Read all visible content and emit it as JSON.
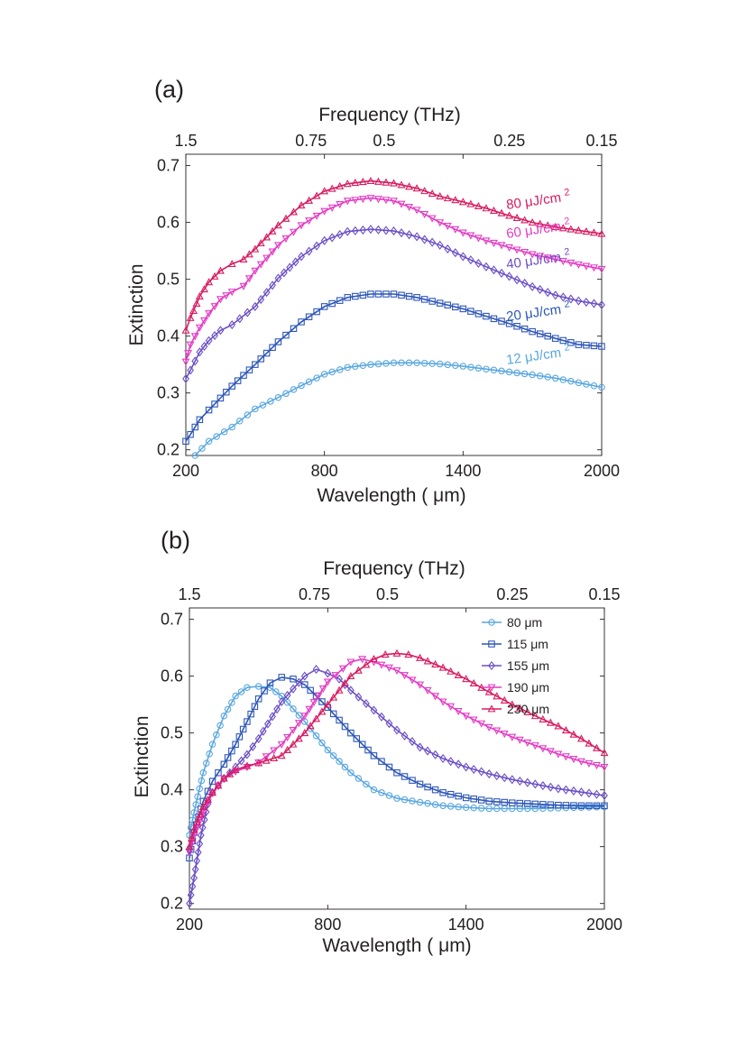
{
  "chart_data": [
    {
      "type": "line",
      "panel_label": "(a)",
      "xlabel": "Wavelength ( μm)",
      "ylabel": "Extinction",
      "top_axis_label": "Frequency (THz)",
      "xlim": [
        200,
        2000
      ],
      "ylim": [
        0.19,
        0.72
      ],
      "xticks": [
        200,
        800,
        1400,
        2000
      ],
      "xtick_labels": [
        "200",
        "800",
        "1400",
        "2000"
      ],
      "yticks": [
        0.2,
        0.3,
        0.4,
        0.5,
        0.6,
        0.7
      ],
      "ytick_labels": [
        "0.2",
        "0.3",
        "0.4",
        "0.5",
        "0.6",
        "0.7"
      ],
      "top_ticks": [
        1.5,
        0.75,
        0.5,
        0.25,
        0.15
      ],
      "top_tick_labels": [
        "1.5",
        "0.75",
        "0.5",
        "0.25",
        "0.15"
      ],
      "legend": "inline-right",
      "series": [
        {
          "name": "12 μJ/cm ",
          "sup": "2",
          "color": "#5aa7df",
          "marker": "circle",
          "points": [
            [
              240,
              0.19
            ],
            [
              300,
              0.215
            ],
            [
              400,
              0.24
            ],
            [
              500,
              0.272
            ],
            [
              600,
              0.292
            ],
            [
              700,
              0.313
            ],
            [
              800,
              0.333
            ],
            [
              900,
              0.345
            ],
            [
              1000,
              0.35
            ],
            [
              1100,
              0.353
            ],
            [
              1200,
              0.353
            ],
            [
              1300,
              0.351
            ],
            [
              1400,
              0.347
            ],
            [
              1500,
              0.342
            ],
            [
              1600,
              0.337
            ],
            [
              1700,
              0.332
            ],
            [
              1800,
              0.326
            ],
            [
              1900,
              0.318
            ],
            [
              2000,
              0.31
            ]
          ]
        },
        {
          "name": "20 μJ/cm ",
          "sup": "2",
          "color": "#2d56b8",
          "marker": "square",
          "points": [
            [
              200,
              0.215
            ],
            [
              220,
              0.227
            ],
            [
              260,
              0.253
            ],
            [
              300,
              0.27
            ],
            [
              400,
              0.312
            ],
            [
              500,
              0.35
            ],
            [
              600,
              0.39
            ],
            [
              700,
              0.425
            ],
            [
              800,
              0.452
            ],
            [
              900,
              0.468
            ],
            [
              1000,
              0.474
            ],
            [
              1100,
              0.474
            ],
            [
              1200,
              0.468
            ],
            [
              1300,
              0.458
            ],
            [
              1400,
              0.448
            ],
            [
              1500,
              0.435
            ],
            [
              1600,
              0.422
            ],
            [
              1700,
              0.408
            ],
            [
              1800,
              0.396
            ],
            [
              1900,
              0.385
            ],
            [
              2000,
              0.382
            ]
          ]
        },
        {
          "name": "40 μJ/cm ",
          "sup": "2",
          "color": "#6b4fc5",
          "marker": "diamond",
          "points": [
            [
              200,
              0.325
            ],
            [
              220,
              0.34
            ],
            [
              260,
              0.372
            ],
            [
              300,
              0.392
            ],
            [
              350,
              0.41
            ],
            [
              400,
              0.42
            ],
            [
              500,
              0.452
            ],
            [
              600,
              0.502
            ],
            [
              700,
              0.54
            ],
            [
              800,
              0.568
            ],
            [
              900,
              0.584
            ],
            [
              1000,
              0.588
            ],
            [
              1100,
              0.585
            ],
            [
              1200,
              0.575
            ],
            [
              1300,
              0.56
            ],
            [
              1400,
              0.54
            ],
            [
              1500,
              0.522
            ],
            [
              1600,
              0.505
            ],
            [
              1700,
              0.487
            ],
            [
              1800,
              0.472
            ],
            [
              1900,
              0.462
            ],
            [
              2000,
              0.455
            ]
          ]
        },
        {
          "name": "60 μJ/cm ",
          "sup": "2",
          "color": "#e43bc4",
          "marker": "triangle-down",
          "points": [
            [
              200,
              0.355
            ],
            [
              220,
              0.385
            ],
            [
              260,
              0.415
            ],
            [
              300,
              0.44
            ],
            [
              350,
              0.465
            ],
            [
              400,
              0.478
            ],
            [
              450,
              0.488
            ],
            [
              500,
              0.515
            ],
            [
              600,
              0.56
            ],
            [
              700,
              0.595
            ],
            [
              800,
              0.62
            ],
            [
              900,
              0.638
            ],
            [
              1000,
              0.643
            ],
            [
              1100,
              0.638
            ],
            [
              1200,
              0.622
            ],
            [
              1300,
              0.6
            ],
            [
              1400,
              0.582
            ],
            [
              1500,
              0.568
            ],
            [
              1600,
              0.556
            ],
            [
              1700,
              0.544
            ],
            [
              1800,
              0.535
            ],
            [
              1900,
              0.526
            ],
            [
              2000,
              0.518
            ]
          ]
        },
        {
          "name": "80 μJ/cm ",
          "sup": "2",
          "color": "#d81b60",
          "marker": "triangle-up",
          "points": [
            [
              200,
              0.41
            ],
            [
              220,
              0.432
            ],
            [
              260,
              0.47
            ],
            [
              300,
              0.495
            ],
            [
              350,
              0.515
            ],
            [
              400,
              0.527
            ],
            [
              450,
              0.535
            ],
            [
              500,
              0.553
            ],
            [
              600,
              0.595
            ],
            [
              700,
              0.63
            ],
            [
              800,
              0.655
            ],
            [
              900,
              0.668
            ],
            [
              1000,
              0.673
            ],
            [
              1100,
              0.669
            ],
            [
              1200,
              0.66
            ],
            [
              1300,
              0.646
            ],
            [
              1400,
              0.636
            ],
            [
              1500,
              0.625
            ],
            [
              1600,
              0.612
            ],
            [
              1700,
              0.6
            ],
            [
              1800,
              0.592
            ],
            [
              1900,
              0.586
            ],
            [
              2000,
              0.58
            ]
          ]
        }
      ]
    },
    {
      "type": "line",
      "panel_label": "(b)",
      "xlabel": "Wavelength ( μm)",
      "ylabel": "Extinction",
      "top_axis_label": "Frequency (THz)",
      "xlim": [
        200,
        2000
      ],
      "ylim": [
        0.19,
        0.72
      ],
      "xticks": [
        200,
        800,
        1400,
        2000
      ],
      "xtick_labels": [
        "200",
        "800",
        "1400",
        "2000"
      ],
      "yticks": [
        0.2,
        0.3,
        0.4,
        0.5,
        0.6,
        0.7
      ],
      "ytick_labels": [
        "0.2",
        "0.3",
        "0.4",
        "0.5",
        "0.6",
        "0.7"
      ],
      "top_ticks": [
        1.5,
        0.75,
        0.5,
        0.25,
        0.15
      ],
      "top_tick_labels": [
        "1.5",
        "0.75",
        "0.5",
        "0.25",
        "0.15"
      ],
      "legend": "top-right",
      "series": [
        {
          "name": "80 μm",
          "color": "#5aa7df",
          "marker": "circle",
          "points": [
            [
              200,
              0.32
            ],
            [
              220,
              0.36
            ],
            [
              260,
              0.43
            ],
            [
              300,
              0.48
            ],
            [
              350,
              0.53
            ],
            [
              400,
              0.565
            ],
            [
              450,
              0.58
            ],
            [
              500,
              0.582
            ],
            [
              550,
              0.58
            ],
            [
              600,
              0.565
            ],
            [
              700,
              0.52
            ],
            [
              800,
              0.47
            ],
            [
              900,
              0.43
            ],
            [
              1000,
              0.4
            ],
            [
              1100,
              0.385
            ],
            [
              1200,
              0.378
            ],
            [
              1300,
              0.372
            ],
            [
              1400,
              0.369
            ],
            [
              1500,
              0.367
            ],
            [
              1600,
              0.367
            ],
            [
              1700,
              0.367
            ],
            [
              1800,
              0.368
            ],
            [
              1900,
              0.369
            ],
            [
              2000,
              0.37
            ]
          ]
        },
        {
          "name": "115 μm",
          "color": "#2d56b8",
          "marker": "square",
          "points": [
            [
              200,
              0.28
            ],
            [
              220,
              0.325
            ],
            [
              260,
              0.38
            ],
            [
              300,
              0.415
            ],
            [
              350,
              0.445
            ],
            [
              400,
              0.48
            ],
            [
              450,
              0.52
            ],
            [
              500,
              0.56
            ],
            [
              550,
              0.588
            ],
            [
              600,
              0.598
            ],
            [
              650,
              0.595
            ],
            [
              700,
              0.585
            ],
            [
              800,
              0.545
            ],
            [
              900,
              0.5
            ],
            [
              1000,
              0.46
            ],
            [
              1100,
              0.43
            ],
            [
              1200,
              0.41
            ],
            [
              1300,
              0.395
            ],
            [
              1400,
              0.386
            ],
            [
              1500,
              0.38
            ],
            [
              1600,
              0.377
            ],
            [
              1700,
              0.375
            ],
            [
              1800,
              0.373
            ],
            [
              1900,
              0.372
            ],
            [
              2000,
              0.372
            ]
          ]
        },
        {
          "name": "155 μm",
          "color": "#6b4fc5",
          "marker": "diamond",
          "points": [
            [
              200,
              0.2
            ],
            [
              220,
              0.245
            ],
            [
              250,
              0.32
            ],
            [
              280,
              0.375
            ],
            [
              300,
              0.395
            ],
            [
              350,
              0.42
            ],
            [
              400,
              0.44
            ],
            [
              450,
              0.462
            ],
            [
              500,
              0.49
            ],
            [
              600,
              0.555
            ],
            [
              700,
              0.6
            ],
            [
              750,
              0.612
            ],
            [
              800,
              0.605
            ],
            [
              850,
              0.595
            ],
            [
              900,
              0.575
            ],
            [
              1000,
              0.54
            ],
            [
              1100,
              0.505
            ],
            [
              1200,
              0.475
            ],
            [
              1300,
              0.455
            ],
            [
              1400,
              0.44
            ],
            [
              1500,
              0.428
            ],
            [
              1600,
              0.418
            ],
            [
              1700,
              0.41
            ],
            [
              1800,
              0.402
            ],
            [
              1900,
              0.396
            ],
            [
              2000,
              0.39
            ]
          ]
        },
        {
          "name": "190 μm",
          "color": "#e43bc4",
          "marker": "triangle-down",
          "points": [
            [
              200,
              0.29
            ],
            [
              220,
              0.32
            ],
            [
              260,
              0.36
            ],
            [
              300,
              0.395
            ],
            [
              350,
              0.42
            ],
            [
              400,
              0.432
            ],
            [
              450,
              0.44
            ],
            [
              500,
              0.448
            ],
            [
              600,
              0.48
            ],
            [
              700,
              0.53
            ],
            [
              800,
              0.59
            ],
            [
              900,
              0.625
            ],
            [
              950,
              0.63
            ],
            [
              1000,
              0.625
            ],
            [
              1100,
              0.61
            ],
            [
              1200,
              0.585
            ],
            [
              1300,
              0.555
            ],
            [
              1400,
              0.53
            ],
            [
              1500,
              0.51
            ],
            [
              1600,
              0.493
            ],
            [
              1700,
              0.478
            ],
            [
              1800,
              0.463
            ],
            [
              1900,
              0.45
            ],
            [
              2000,
              0.44
            ]
          ]
        },
        {
          "name": "230 μm",
          "color": "#d81b60",
          "marker": "triangle-up",
          "points": [
            [
              200,
              0.3
            ],
            [
              220,
              0.33
            ],
            [
              260,
              0.37
            ],
            [
              300,
              0.395
            ],
            [
              350,
              0.42
            ],
            [
              400,
              0.435
            ],
            [
              450,
              0.442
            ],
            [
              500,
              0.447
            ],
            [
              600,
              0.46
            ],
            [
              700,
              0.5
            ],
            [
              800,
              0.55
            ],
            [
              900,
              0.6
            ],
            [
              1000,
              0.63
            ],
            [
              1050,
              0.638
            ],
            [
              1100,
              0.64
            ],
            [
              1150,
              0.638
            ],
            [
              1200,
              0.632
            ],
            [
              1300,
              0.615
            ],
            [
              1400,
              0.595
            ],
            [
              1500,
              0.572
            ],
            [
              1600,
              0.55
            ],
            [
              1700,
              0.53
            ],
            [
              1800,
              0.512
            ],
            [
              1900,
              0.49
            ],
            [
              2000,
              0.465
            ]
          ]
        }
      ]
    }
  ]
}
